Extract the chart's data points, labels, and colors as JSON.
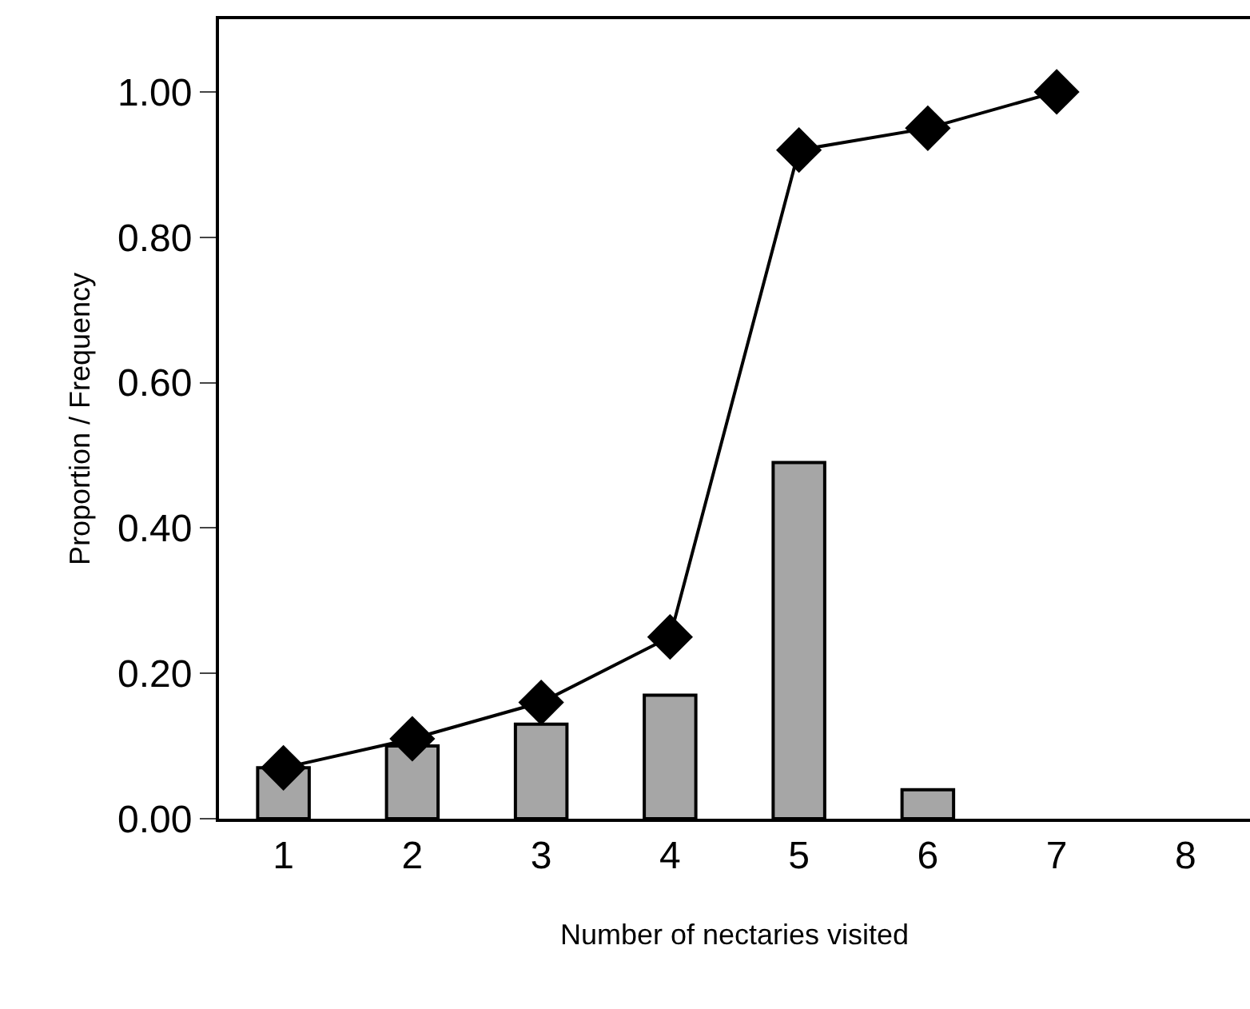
{
  "chart_data": {
    "type": "bar",
    "xlabel": "Number of nectaries visited",
    "ylabel": "Proportion / Frequency",
    "categories": [
      "1",
      "2",
      "3",
      "4",
      "5",
      "6",
      "7",
      "8"
    ],
    "series": [
      {
        "color": "#a6a6a6",
        "values": [
          0.07,
          0.1,
          0.13,
          0.17,
          0.49,
          0.04,
          null,
          null
        ]
      },
      {
        "type": "line",
        "color": "#000000",
        "marker": "diamond",
        "line_style": "solid",
        "values": [
          0.07,
          0.11,
          0.16,
          0.25,
          0.92,
          0.95,
          1.0,
          null
        ]
      }
    ],
    "ylim": [
      0,
      1.1
    ],
    "yticks": [
      {
        "value": 0,
        "label": "0.00"
      },
      {
        "value": 0.2,
        "label": "0.20"
      },
      {
        "value": 0.4,
        "label": "0.40"
      },
      {
        "value": 0.6,
        "label": "0.60"
      },
      {
        "value": 0.8,
        "label": "0.80"
      },
      {
        "value": 1.0,
        "label": "1.00"
      }
    ],
    "grid": false,
    "legend": false
  }
}
